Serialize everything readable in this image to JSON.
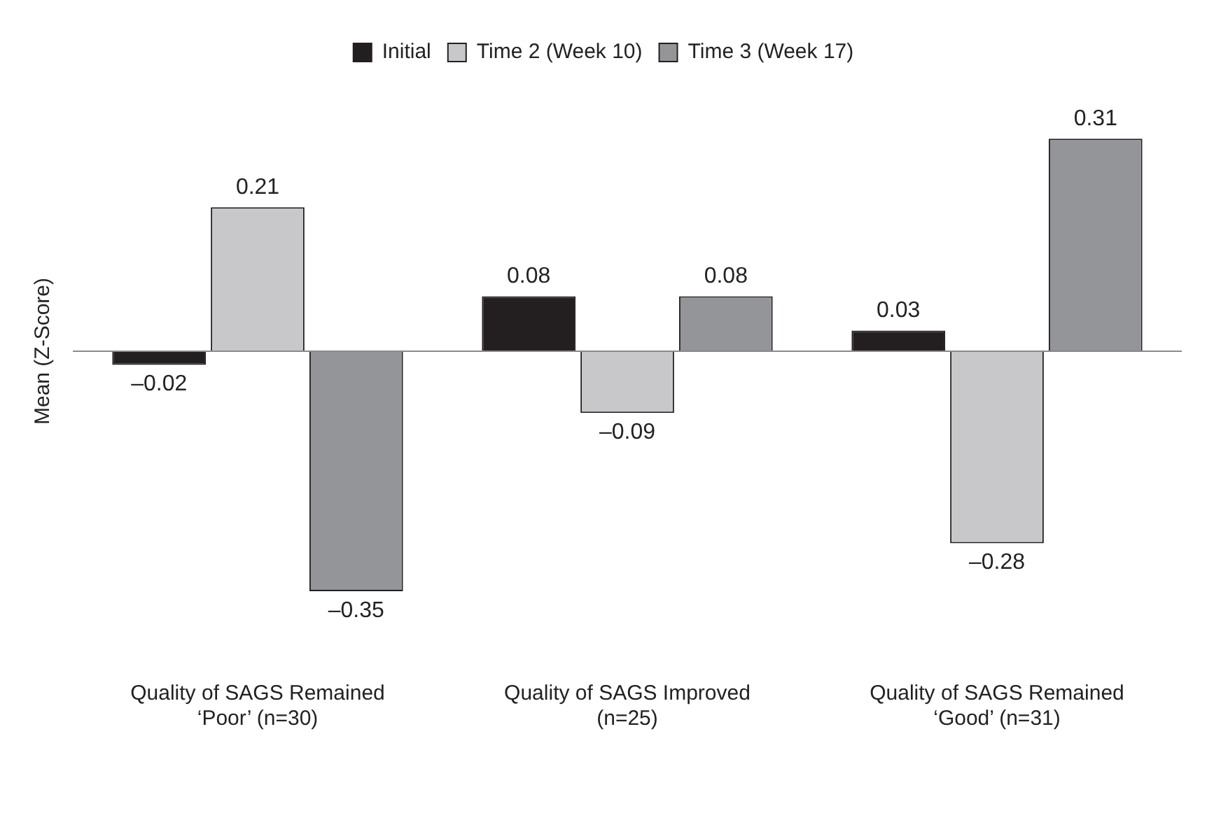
{
  "chart_data": {
    "type": "bar",
    "ylabel": "Mean (Z-Score)",
    "categories": [
      "Quality of SAGS Remained ‘Poor’ (n=30)",
      "Quality of SAGS Improved (n=25)",
      "Quality of SAGS Remained ‘Good’ (n=31)"
    ],
    "series": [
      {
        "name": "Initial",
        "color": "#231f20",
        "values": [
          -0.02,
          0.08,
          0.03
        ],
        "value_labels": [
          "–0.02",
          "0.08",
          "0.03"
        ]
      },
      {
        "name": "Time 2 (Week 10)",
        "color": "#c8c8ca",
        "values": [
          0.21,
          -0.09,
          -0.28
        ],
        "value_labels": [
          "0.21",
          "–0.09",
          "–0.28"
        ]
      },
      {
        "name": "Time 3 (Week 17)",
        "color": "#939598",
        "values": [
          -0.35,
          0.08,
          0.31
        ],
        "value_labels": [
          "–0.35",
          "0.08",
          "0.31"
        ]
      }
    ],
    "legend": "top",
    "grid": false
  }
}
